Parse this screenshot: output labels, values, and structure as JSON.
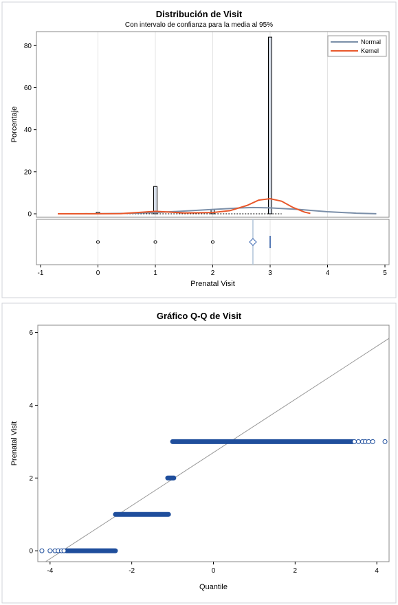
{
  "chart_data": [
    {
      "type": "histogram",
      "title": "Distribución de Visit",
      "subtitle": "Con intervalo de confianza para la media al 95%",
      "xlabel": "Prenatal Visit",
      "ylabel": "Porcentaje",
      "xlim": [
        -1,
        5
      ],
      "ylim": [
        0,
        85
      ],
      "xticks": [
        "-1",
        "0",
        "1",
        "2",
        "3",
        "4",
        "5"
      ],
      "yticks": [
        "0",
        "20",
        "40",
        "60",
        "80"
      ],
      "grid": true,
      "legend_position": "top-right",
      "bars": [
        {
          "x": 0,
          "value": 0.7
        },
        {
          "x": 1,
          "value": 13
        },
        {
          "x": 2,
          "value": 2
        },
        {
          "x": 3,
          "value": 84
        }
      ],
      "series": [
        {
          "name": "Normal",
          "color": "#7a8ea8",
          "x": [
            -0.7,
            0,
            0.5,
            1,
            1.5,
            2,
            2.5,
            2.7,
            3,
            3.5,
            4,
            4.5,
            4.85
          ],
          "y": [
            0,
            0.05,
            0.2,
            0.6,
            1.3,
            2.1,
            2.8,
            3.0,
            2.8,
            2.1,
            1.0,
            0.3,
            0.05
          ]
        },
        {
          "name": "Kernel",
          "color": "#e8572a",
          "x": [
            -0.7,
            -0.3,
            0,
            0.4,
            0.8,
            1,
            1.2,
            1.5,
            2,
            2.3,
            2.6,
            2.8,
            3,
            3.2,
            3.4,
            3.6,
            3.7
          ],
          "y": [
            0,
            0,
            0.05,
            0.1,
            0.8,
            1.2,
            0.9,
            0.4,
            0.6,
            1.5,
            4.0,
            6.5,
            7.2,
            6.0,
            3.0,
            0.8,
            0.2
          ]
        }
      ],
      "boxplot": {
        "outliers": [
          0,
          1,
          2
        ],
        "mean": 2.7,
        "median": 3,
        "mean_ci": [
          2.68,
          2.72
        ]
      }
    },
    {
      "type": "scatter",
      "title": "Gráfico Q-Q de Visit",
      "xlabel": "Quantile",
      "ylabel": "Prenatal Visit",
      "xlim": [
        -4.3,
        4.3
      ],
      "ylim": [
        -0.3,
        6.2
      ],
      "xticks": [
        "-4",
        "-2",
        "0",
        "2",
        "4"
      ],
      "yticks": [
        "0",
        "2",
        "4",
        "6"
      ],
      "reference_line": {
        "intercept": 2.7,
        "slope": 0.73
      },
      "point_color": "#1f4e9c",
      "segments": [
        {
          "y": 0,
          "x_start": -3.6,
          "x_end": -2.4
        },
        {
          "y": 1,
          "x_start": -2.4,
          "x_end": -1.1
        },
        {
          "y": 2,
          "x_start": -1.12,
          "x_end": -0.97
        },
        {
          "y": 3,
          "x_start": -1.0,
          "x_end": 3.4
        }
      ],
      "sparse_points": [
        {
          "x": -4.2,
          "y": 0
        },
        {
          "x": -4.0,
          "y": 0
        },
        {
          "x": -3.88,
          "y": 0
        },
        {
          "x": -3.8,
          "y": 0
        },
        {
          "x": -3.72,
          "y": 0
        },
        {
          "x": -3.66,
          "y": 0
        },
        {
          "x": 3.45,
          "y": 3
        },
        {
          "x": 3.55,
          "y": 3
        },
        {
          "x": 3.65,
          "y": 3
        },
        {
          "x": 3.72,
          "y": 3
        },
        {
          "x": 3.8,
          "y": 3
        },
        {
          "x": 3.9,
          "y": 3
        },
        {
          "x": 4.2,
          "y": 3
        }
      ]
    }
  ]
}
